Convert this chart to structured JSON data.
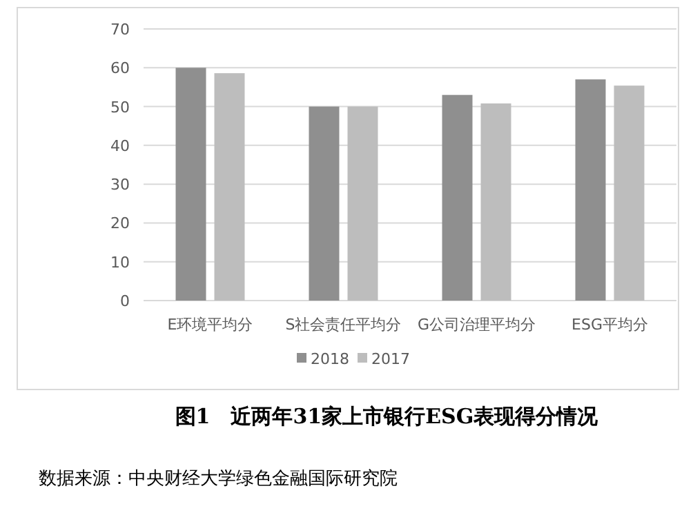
{
  "chart_data": {
    "type": "bar",
    "title": "图1　近两年31家上市银行ESG表现得分情况",
    "categories": [
      "E环境平均分",
      "S社会责任平均分",
      "G公司治理平均分",
      "ESG平均分"
    ],
    "series": [
      {
        "name": "2018",
        "color": "#8f8f8f",
        "values": [
          60,
          50,
          53,
          57
        ]
      },
      {
        "name": "2017",
        "color": "#bdbdbd",
        "values": [
          58.6,
          50,
          50.8,
          55.4
        ]
      }
    ],
    "ylim": [
      0,
      70
    ],
    "yticks": [
      0,
      10,
      20,
      30,
      40,
      50,
      60,
      70
    ],
    "grid": "y",
    "legend": "bottom",
    "annotations": [
      "数据来源：中央财经大学绿色金融国际研究院"
    ]
  }
}
